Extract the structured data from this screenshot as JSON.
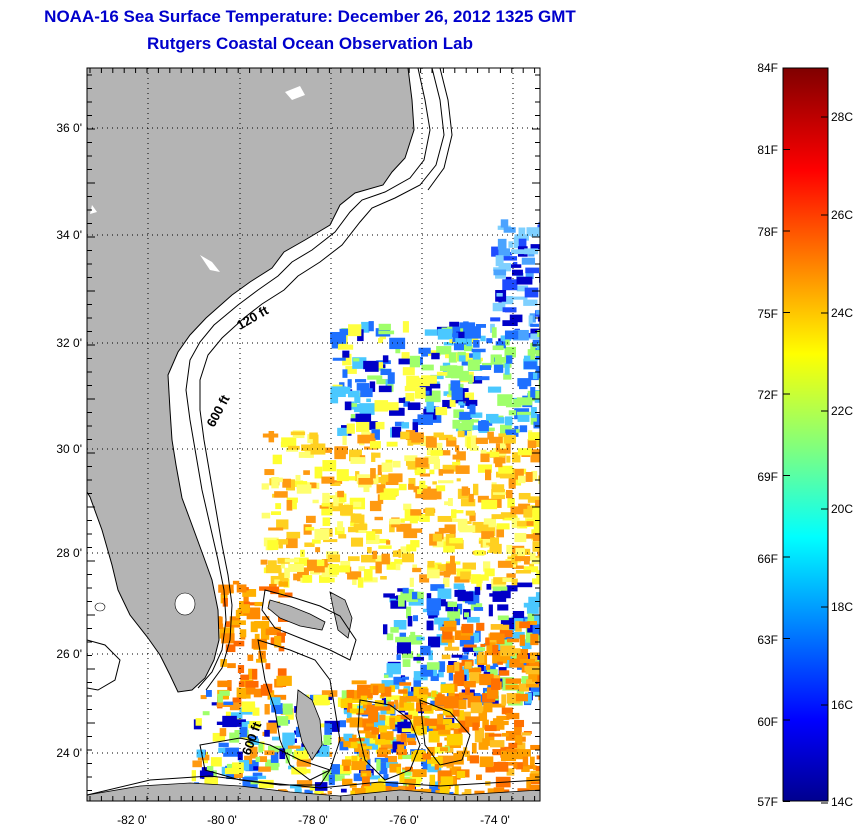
{
  "title": {
    "line1": "NOAA-16 Sea Surface Temperature:  December 26, 2012 1325 GMT",
    "line2": "Rutgers Coastal Ocean Observation Lab"
  },
  "map": {
    "lon_labels": [
      "-82 0'",
      "-80 0'",
      "-78 0'",
      "-76 0'",
      "-74 0'"
    ],
    "lat_labels": [
      "36 0'",
      "34 0'",
      "32 0'",
      "30 0'",
      "28 0'",
      "26 0'",
      "24 0'"
    ],
    "contour_labels": [
      "120 ft",
      "600 ft",
      "600 ft"
    ],
    "land_color": "#b4b4b4",
    "grid": "dotted"
  },
  "colorbar": {
    "fahrenheit_labels": [
      "84F",
      "81F",
      "78F",
      "75F",
      "72F",
      "69F",
      "66F",
      "63F",
      "60F",
      "57F"
    ],
    "celsius_labels": [
      "28C",
      "26C",
      "24C",
      "22C",
      "20C",
      "18C",
      "16C",
      "14C"
    ],
    "range_c": [
      13.9,
      28.9
    ],
    "colormap": "jet"
  }
}
